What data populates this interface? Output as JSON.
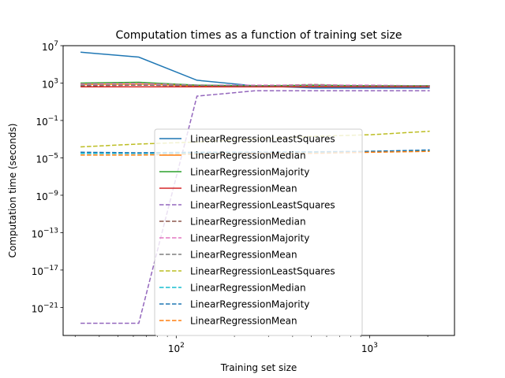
{
  "chart_data": {
    "type": "line",
    "title": "Computation times as a function of training set size",
    "xlabel": "Training set size",
    "ylabel": "Computation time (seconds)",
    "x_scale": "log",
    "y_scale": "log",
    "xlim": [
      26,
      2750
    ],
    "ylim": [
      1e-24,
      10000000.0
    ],
    "x": [
      32,
      64,
      128,
      256,
      512,
      1024,
      2048
    ],
    "x_ticks": [
      {
        "value": 100,
        "base": "10",
        "exp": "2"
      },
      {
        "value": 1000,
        "base": "10",
        "exp": "3"
      }
    ],
    "y_ticks": [
      {
        "value": 10000000.0,
        "base": "10",
        "exp": "7"
      },
      {
        "value": 1000.0,
        "base": "10",
        "exp": "3"
      },
      {
        "value": 0.1,
        "base": "10",
        "exp": "−1"
      },
      {
        "value": 1e-05,
        "base": "10",
        "exp": "−5"
      },
      {
        "value": 1e-09,
        "base": "10",
        "exp": "−9"
      },
      {
        "value": 1e-13,
        "base": "10",
        "exp": "−13"
      },
      {
        "value": 1e-17,
        "base": "10",
        "exp": "−17"
      },
      {
        "value": 1e-21,
        "base": "10",
        "exp": "−21"
      }
    ],
    "grid": false,
    "legend_position": "center",
    "series": [
      {
        "name": "LinearRegressionLeastSquares",
        "color": "#1f77b4",
        "dash": "solid",
        "values": [
          2000000.0,
          600000.0,
          2000.0,
          500.0,
          300.0,
          300.0,
          300.0
        ]
      },
      {
        "name": "LinearRegressionMedian",
        "color": "#ff7f0e",
        "dash": "solid",
        "values": [
          700.0,
          800.0,
          500.0,
          500.0,
          500.0,
          500.0,
          500.0
        ]
      },
      {
        "name": "LinearRegressionMajority",
        "color": "#2ca02c",
        "dash": "solid",
        "values": [
          1000.0,
          1200.0,
          600.0,
          500.0,
          600.0,
          500.0,
          500.0
        ]
      },
      {
        "name": "LinearRegressionMean",
        "color": "#d62728",
        "dash": "solid",
        "values": [
          400.0,
          400.0,
          400.0,
          400.0,
          400.0,
          400.0,
          400.0
        ]
      },
      {
        "name": "LinearRegressionLeastSquares",
        "color": "#9467bd",
        "dash": "dashed",
        "values": [
          2e-23,
          2e-23,
          40,
          150,
          150,
          150,
          150
        ]
      },
      {
        "name": "LinearRegressionMedian",
        "color": "#8c564b",
        "dash": "dashed",
        "values": [
          500.0,
          600.0,
          500.0,
          500.0,
          700.0,
          500.0,
          500.0
        ]
      },
      {
        "name": "LinearRegressionMajority",
        "color": "#e377c2",
        "dash": "dashed",
        "values": [
          800.0,
          900.0,
          600.0,
          600.0,
          600.0,
          600.0,
          500.0
        ]
      },
      {
        "name": "LinearRegressionMean",
        "color": "#7f7f7f",
        "dash": "dashed",
        "values": [
          600.0,
          600.0,
          600.0,
          500.0,
          500.0,
          500.0,
          500.0
        ]
      },
      {
        "name": "LinearRegressionLeastSquares",
        "color": "#bcbd22",
        "dash": "dashed",
        "values": [
          0.00015,
          0.0003,
          0.0005,
          0.001,
          0.002,
          0.003,
          0.007
        ]
      },
      {
        "name": "LinearRegressionMedian",
        "color": "#17becf",
        "dash": "dashed",
        "values": [
          3e-05,
          3e-05,
          3e-05,
          4e-05,
          4e-05,
          5e-05,
          6e-05
        ]
      },
      {
        "name": "LinearRegressionMajority",
        "color": "#1f77b4",
        "dash": "dashed",
        "values": [
          4e-05,
          3.5e-05,
          4e-05,
          4e-05,
          4.5e-05,
          5e-05,
          7e-05
        ]
      },
      {
        "name": "LinearRegressionMean",
        "color": "#ff7f0e",
        "dash": "dashed",
        "values": [
          2e-05,
          2e-05,
          2.5e-05,
          3e-05,
          3e-05,
          4e-05,
          5e-05
        ]
      }
    ]
  }
}
